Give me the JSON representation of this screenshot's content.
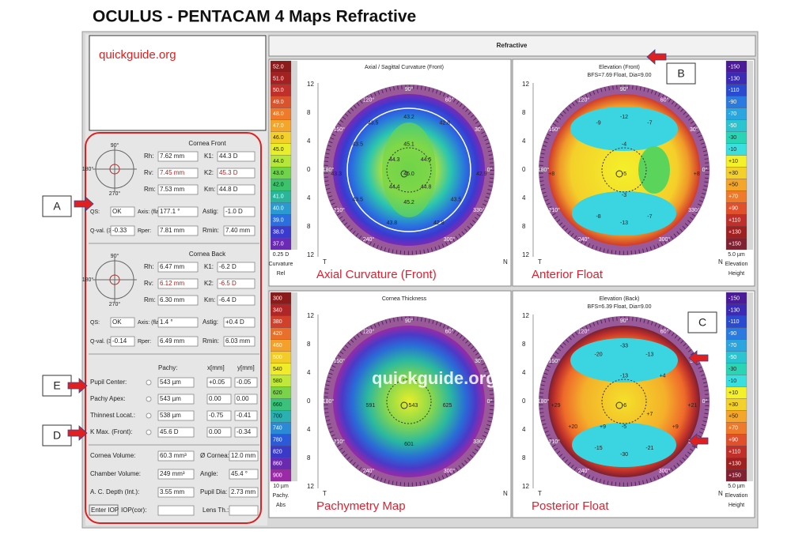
{
  "title": "OCULUS - PENTACAM 4 Maps Refractive",
  "watermark": "quickguide.org",
  "tab": "Refractive",
  "callouts": [
    "A",
    "B",
    "C",
    "D",
    "E"
  ],
  "cornea_front": {
    "heading": "Cornea Front",
    "polar": [
      "90°",
      "180°",
      "270°"
    ],
    "rows": [
      [
        "Rh:",
        "7.62 mm",
        "K1:",
        "44.3 D"
      ],
      [
        "Rv:",
        "7.45 mm",
        "K2:",
        "45.3 D"
      ],
      [
        "Rm:",
        "7.53 mm",
        "Km:",
        "44.8 D"
      ],
      [
        "QS:",
        "OK",
        "Axis: (flat)",
        "177.1 °",
        "Astig:",
        "-1.0 D"
      ],
      [
        "Q-val. (30°)",
        "-0.33",
        "Rper:",
        "7.81 mm",
        "Rmin:",
        "7.40 mm"
      ]
    ]
  },
  "cornea_back": {
    "heading": "Cornea Back",
    "polar": [
      "90°",
      "180°",
      "270°"
    ],
    "rows": [
      [
        "Rh:",
        "6.47 mm",
        "K1:",
        "-6.2 D"
      ],
      [
        "Rv:",
        "6.12 mm",
        "K2:",
        "-6.5 D"
      ],
      [
        "Rm:",
        "6.30 mm",
        "Km:",
        "-6.4 D"
      ],
      [
        "QS:",
        "OK",
        "Axis: (flat)",
        "1.4 °",
        "Astig:",
        "+0.4 D"
      ],
      [
        "Q-val. (30°)",
        "-0.14",
        "Rper:",
        "6.49 mm",
        "Rmin:",
        "6.03 mm"
      ]
    ]
  },
  "pachy": {
    "header": [
      "Pachy:",
      "x[mm]",
      "y[mm]"
    ],
    "rows": [
      [
        "Pupil Center:",
        "543 µm",
        "+0.05",
        "-0.05"
      ],
      [
        "Pachy Apex:",
        "543 µm",
        "0.00",
        "0.00"
      ],
      [
        "Thinnest Locat.:",
        "538 µm",
        "-0.75",
        "-0.41"
      ],
      [
        "K Max. (Front):",
        "45.6 D",
        "0.00",
        "-0.34"
      ]
    ]
  },
  "volumes": {
    "rows": [
      [
        "Cornea Volume:",
        "60.3 mm³",
        "Ø Cornea:",
        "12.0 mm"
      ],
      [
        "Chamber Volume:",
        "249 mm³",
        "Angle:",
        "45.4 °"
      ],
      [
        "A. C. Depth (Int.):",
        "3.55 mm",
        "Pupil Dia:",
        "2.73 mm"
      ]
    ],
    "iop": [
      "Enter IOP",
      "IOP(cor):",
      "Lens Th.:"
    ]
  },
  "maps": [
    {
      "title": "Axial / Sagittal Curvature (Front)",
      "caption": "Axial Curvature (Front)",
      "scale": [
        "52.0",
        "51.0",
        "50.0",
        "49.0",
        "48.0",
        "47.0",
        "46.0",
        "45.0",
        "44.0",
        "43.0",
        "42.0",
        "41.0",
        "40.0",
        "39.0",
        "38.0",
        "37.0"
      ],
      "scale_foot": [
        "0.25 D",
        "Curvature",
        "Rel"
      ],
      "numbers": [
        "43.2",
        "42.8",
        "43.5",
        "45.1",
        "43.5",
        "44.3",
        "44.5",
        "43.3",
        "45.0",
        "42.9",
        "44.4",
        "44.8",
        "43.5",
        "45.2",
        "43.5",
        "43.8",
        "42.8"
      ],
      "degrees": [
        "90°",
        "120°",
        "60°",
        "150°",
        "30°",
        "180°",
        "0°",
        "210°",
        "330°",
        "240°",
        "300°"
      ],
      "yticks": [
        "12",
        "8",
        "4",
        "0",
        "4",
        "8",
        "12"
      ],
      "sides": [
        "T",
        "N"
      ]
    },
    {
      "title": "Elevation (Front)",
      "subtitle": "BFS=7.69 Float, Dia=9.00",
      "caption": "Anterior Float",
      "scale": [
        "-150",
        "-130",
        "-110",
        "-90",
        "-70",
        "-50",
        "-30",
        "-10",
        "+10",
        "+30",
        "+50",
        "+70",
        "+90",
        "+110",
        "+130",
        "+150"
      ],
      "scale_foot": [
        "5.0 µm",
        "Elevation",
        "Height"
      ],
      "numbers": [
        "-9",
        "-12",
        "-7",
        "-4",
        "+8",
        "-5",
        "+8",
        "-3",
        "-8",
        "-13",
        "-7"
      ],
      "degrees": [
        "90°",
        "120°",
        "60°",
        "150°",
        "30°",
        "180°",
        "0°",
        "210°",
        "330°",
        "240°",
        "300°"
      ],
      "yticks": [
        "12",
        "8",
        "4",
        "0",
        "4",
        "8",
        "12"
      ],
      "sides": [
        "T",
        "N"
      ]
    },
    {
      "title": "Cornea Thickness",
      "caption": "Pachymetry Map",
      "scale": [
        "300",
        "340",
        "380",
        "420",
        "460",
        "500",
        "540",
        "580",
        "620",
        "660",
        "700",
        "740",
        "780",
        "820",
        "860",
        "900"
      ],
      "scale_foot": [
        "10 µm",
        "Pachy.",
        "Abs"
      ],
      "numbers": [
        "591",
        "543",
        "625",
        "601"
      ],
      "degrees": [
        "90°",
        "120°",
        "60°",
        "150°",
        "30°",
        "180°",
        "0°",
        "210°",
        "330°",
        "240°",
        "300°"
      ],
      "yticks": [
        "12",
        "8",
        "4",
        "0",
        "4",
        "8",
        "12"
      ],
      "sides": [
        "T",
        "N"
      ]
    },
    {
      "title": "Elevation (Back)",
      "subtitle": "BFS=6.39 Float, Dia=9.00",
      "caption": "Posterior Float",
      "scale": [
        "-150",
        "-130",
        "-110",
        "-90",
        "-70",
        "-50",
        "-30",
        "-10",
        "+10",
        "+30",
        "+50",
        "+70",
        "+90",
        "+110",
        "+130",
        "+150"
      ],
      "scale_foot": [
        "5.0 µm",
        "Elevation",
        "Height"
      ],
      "numbers": [
        "-20",
        "-33",
        "-13",
        "-13",
        "+4",
        "+29",
        "-6",
        "+21",
        "+20",
        "+9",
        "-5",
        "+9",
        "-15",
        "-30",
        "-21",
        "+7"
      ],
      "degrees": [
        "90°",
        "120°",
        "60°",
        "150°",
        "30°",
        "180°",
        "0°",
        "210°",
        "330°",
        "240°",
        "300°"
      ],
      "yticks": [
        "12",
        "8",
        "4",
        "0",
        "4",
        "8",
        "12"
      ],
      "sides": [
        "T",
        "N"
      ]
    }
  ]
}
